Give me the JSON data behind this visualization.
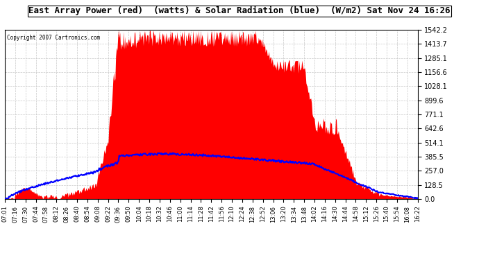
{
  "title": "East Array Power (red)  (watts) & Solar Radiation (blue)  (W/m2) Sat Nov 24 16:26",
  "copyright": "Copyright 2007 Cartronics.com",
  "ymax": 1542.2,
  "ymin": 0.0,
  "yticks": [
    0.0,
    128.5,
    257.0,
    385.5,
    514.1,
    642.6,
    771.1,
    899.6,
    1028.1,
    1156.6,
    1285.1,
    1413.7,
    1542.2
  ],
  "background_color": "#ffffff",
  "plot_bg_color": "#ffffff",
  "grid_color": "#c8c8c8",
  "red_color": "#ff0000",
  "blue_color": "#0000ff",
  "time_labels": [
    "07:01",
    "07:16",
    "07:30",
    "07:44",
    "07:58",
    "08:12",
    "08:26",
    "08:40",
    "08:54",
    "09:08",
    "09:22",
    "09:36",
    "09:50",
    "10:04",
    "10:18",
    "10:32",
    "10:46",
    "11:00",
    "11:14",
    "11:28",
    "11:42",
    "11:56",
    "12:10",
    "12:24",
    "12:38",
    "12:52",
    "13:06",
    "13:20",
    "13:34",
    "13:48",
    "14:02",
    "14:16",
    "14:30",
    "14:44",
    "14:58",
    "15:12",
    "15:26",
    "15:40",
    "15:54",
    "16:08",
    "16:22"
  ],
  "n_points": 600
}
